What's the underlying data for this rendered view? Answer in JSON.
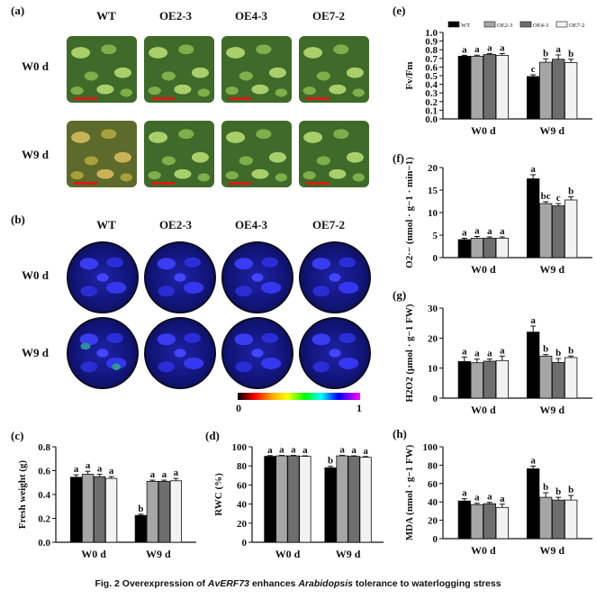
{
  "panel_labels": {
    "a": "(a)",
    "b": "(b)",
    "c": "(c)",
    "d": "(d)",
    "e": "(e)",
    "f": "(f)",
    "g": "(g)",
    "h": "(h)"
  },
  "genotypes": [
    "WT",
    "OE2-3",
    "OE4-3",
    "OE7-2"
  ],
  "rows": [
    "W0 d",
    "W9 d"
  ],
  "colorbar": {
    "min": "0",
    "max": "1"
  },
  "caption": {
    "prefix": "Fig. 2    Overexpression of ",
    "gene": "AvERF73",
    "middle": " enhances ",
    "species": "Arabidopsis",
    "suffix": " tolerance to waterlogging stress"
  },
  "colors": {
    "WT": "#000000",
    "OE2-3": "#a6a6a6",
    "OE4-3": "#6e6e6e",
    "OE7-2": "#f2f2f2"
  },
  "chart_data": [
    {
      "id": "c",
      "type": "bar",
      "categories": [
        "W0 d",
        "W9 d"
      ],
      "series": [
        {
          "name": "WT",
          "values": [
            0.545,
            0.225
          ],
          "err": [
            0.02,
            0.01
          ]
        },
        {
          "name": "OE2-3",
          "values": [
            0.57,
            0.51
          ],
          "err": [
            0.025,
            0.01
          ]
        },
        {
          "name": "OE4-3",
          "values": [
            0.55,
            0.51
          ],
          "err": [
            0.02,
            0.01
          ]
        },
        {
          "name": "OE7-2",
          "values": [
            0.535,
            0.515
          ],
          "err": [
            0.015,
            0.02
          ]
        }
      ],
      "letters": [
        [
          "a",
          "a",
          "a",
          "a"
        ],
        [
          "b",
          "a",
          "a",
          "a"
        ]
      ],
      "ylabel": "Fresh weight (g)",
      "ylim": [
        0,
        0.8
      ],
      "yticks": [
        "0.0",
        "0.2",
        "0.4",
        "0.6",
        "0.8"
      ],
      "legend": false
    },
    {
      "id": "d",
      "type": "bar",
      "categories": [
        "W0 d",
        "W9 d"
      ],
      "series": [
        {
          "name": "WT",
          "values": [
            90,
            78
          ],
          "err": [
            0.8,
            1.5
          ]
        },
        {
          "name": "OE2-3",
          "values": [
            90.5,
            90.5
          ],
          "err": [
            0.5,
            0.5
          ]
        },
        {
          "name": "OE4-3",
          "values": [
            90.5,
            90
          ],
          "err": [
            0.5,
            0.5
          ]
        },
        {
          "name": "OE7-2",
          "values": [
            90,
            89
          ],
          "err": [
            0.5,
            0.8
          ]
        }
      ],
      "letters": [
        [
          "a",
          "a",
          "a",
          "a"
        ],
        [
          "b",
          "a",
          "a",
          "a"
        ]
      ],
      "ylabel": "RWC (%)",
      "ylim": [
        0,
        100
      ],
      "yticks": [
        "0",
        "20",
        "40",
        "60",
        "80",
        "100"
      ],
      "legend": false
    },
    {
      "id": "e",
      "type": "bar",
      "categories": [
        "W0 d",
        "W9 d"
      ],
      "series": [
        {
          "name": "WT",
          "values": [
            0.725,
            0.49
          ],
          "err": [
            0.01,
            0.02
          ]
        },
        {
          "name": "OE2-3",
          "values": [
            0.725,
            0.655
          ],
          "err": [
            0.012,
            0.04
          ]
        },
        {
          "name": "OE4-3",
          "values": [
            0.745,
            0.69
          ],
          "err": [
            0.012,
            0.05
          ]
        },
        {
          "name": "OE7-2",
          "values": [
            0.735,
            0.65
          ],
          "err": [
            0.02,
            0.04
          ]
        }
      ],
      "letters": [
        [
          "a",
          "a",
          "a",
          "a"
        ],
        [
          "c",
          "b",
          "a",
          "b"
        ]
      ],
      "ylabel": "Fv/Fm",
      "ylim": [
        0,
        1.0
      ],
      "yticks": [
        "0.0",
        "0.1",
        "0.2",
        "0.3",
        "0.4",
        "0.5",
        "0.6",
        "0.7",
        "0.8",
        "0.9",
        "1.0"
      ],
      "legend": true
    },
    {
      "id": "f",
      "type": "bar",
      "categories": [
        "W0 d",
        "W9 d"
      ],
      "series": [
        {
          "name": "WT",
          "values": [
            4.0,
            17.5
          ],
          "err": [
            0.3,
            0.9
          ]
        },
        {
          "name": "OE2-3",
          "values": [
            4.3,
            12.0
          ],
          "err": [
            0.4,
            0.4
          ]
        },
        {
          "name": "OE4-3",
          "values": [
            4.3,
            11.5
          ],
          "err": [
            0.3,
            0.5
          ]
        },
        {
          "name": "OE7-2",
          "values": [
            4.3,
            12.8
          ],
          "err": [
            0.3,
            0.7
          ]
        }
      ],
      "letters": [
        [
          "a",
          "a",
          "a",
          "a"
        ],
        [
          "a",
          "bc",
          "c",
          "b"
        ]
      ],
      "ylabel": "O2·− (nmol · g−1 · min−1)",
      "ylim": [
        0,
        20
      ],
      "yticks": [
        "0",
        "5",
        "10",
        "15",
        "20"
      ],
      "legend": false
    },
    {
      "id": "g",
      "type": "bar",
      "categories": [
        "W0 d",
        "W9 d"
      ],
      "series": [
        {
          "name": "WT",
          "values": [
            12.2,
            22.0
          ],
          "err": [
            1.5,
            2.0
          ]
        },
        {
          "name": "OE2-3",
          "values": [
            11.8,
            14.0
          ],
          "err": [
            1.2,
            0.5
          ]
        },
        {
          "name": "OE4-3",
          "values": [
            12.3,
            11.9
          ],
          "err": [
            0.7,
            1.3
          ]
        },
        {
          "name": "OE7-2",
          "values": [
            12.5,
            13.5
          ],
          "err": [
            1.5,
            0.5
          ]
        }
      ],
      "letters": [
        [
          "a",
          "a",
          "a",
          "a"
        ],
        [
          "a",
          "b",
          "b",
          "b"
        ]
      ],
      "ylabel": "H2O2 (μmol · g−1 FW)",
      "ylim": [
        0,
        30
      ],
      "yticks": [
        "0",
        "10",
        "20",
        "30"
      ],
      "legend": false
    },
    {
      "id": "h",
      "type": "bar",
      "categories": [
        "W0 d",
        "W9 d"
      ],
      "series": [
        {
          "name": "WT",
          "values": [
            41,
            76
          ],
          "err": [
            2.5,
            3
          ]
        },
        {
          "name": "OE2-3",
          "values": [
            37,
            45
          ],
          "err": [
            1.5,
            5
          ]
        },
        {
          "name": "OE4-3",
          "values": [
            38,
            42
          ],
          "err": [
            1.5,
            3
          ]
        },
        {
          "name": "OE7-2",
          "values": [
            34,
            42
          ],
          "err": [
            3.5,
            5
          ]
        }
      ],
      "letters": [
        [
          "a",
          "a",
          "a",
          "a"
        ],
        [
          "a",
          "b",
          "b",
          "b"
        ]
      ],
      "ylabel": "MDA (nmol · g−1 FW)",
      "ylim": [
        0,
        100
      ],
      "yticks": [
        "0",
        "20",
        "40",
        "60",
        "80",
        "100"
      ],
      "legend": false
    }
  ]
}
